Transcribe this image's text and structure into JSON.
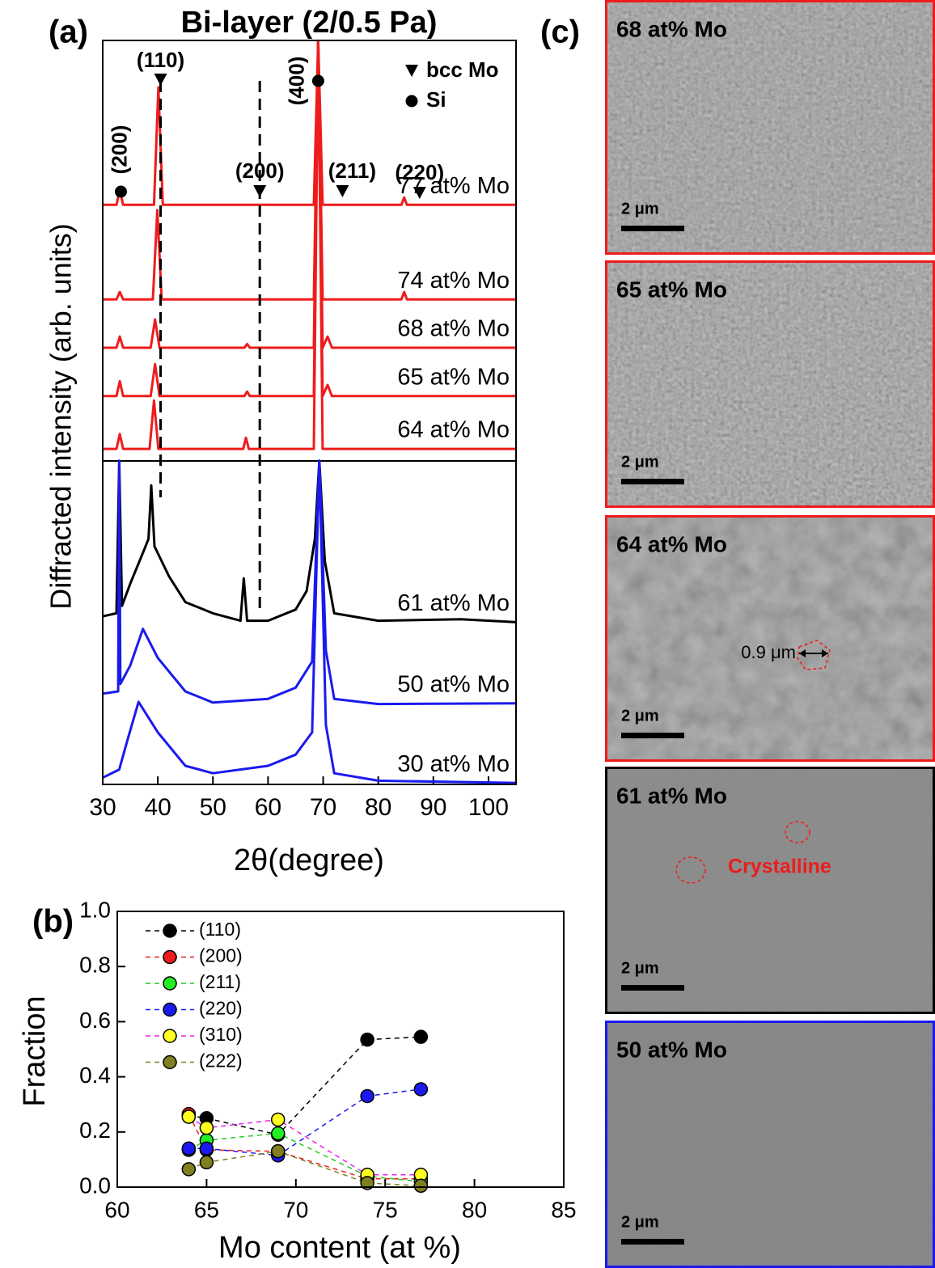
{
  "chart_data": [
    {
      "type": "line",
      "panel_label": "(a)",
      "title": "Bi-layer (2/0.5 Pa)",
      "x_label": "2θ(degree)",
      "y_label": "Diffracted intensity (arb. units)",
      "xlim": [
        30,
        105
      ],
      "xticks": [
        30,
        40,
        50,
        60,
        70,
        80,
        90,
        100
      ],
      "ylim": [
        0,
        100
      ],
      "legend": "inline",
      "series": [
        {
          "name": "77 at% Mo",
          "color": "#ee1c1c",
          "x": [
            30,
            32.5,
            33.1,
            33.7,
            39.3,
            40.1,
            40.9,
            68.3,
            69.1,
            69.9,
            84.2,
            84.7,
            85.2,
            105
          ],
          "values": [
            77.9,
            77.9,
            79.9,
            77.9,
            77.9,
            93.7,
            77.9,
            77.9,
            100,
            77.9,
            77.9,
            78.9,
            77.9,
            77.9
          ]
        },
        {
          "name": "74 at% Mo",
          "color": "#ee1c1c",
          "x": [
            30,
            32.5,
            33.1,
            33.7,
            39.1,
            39.9,
            40.7,
            68.3,
            69.1,
            69.9,
            84.2,
            84.7,
            85.2,
            105
          ],
          "values": [
            65.2,
            65.2,
            66.2,
            65.2,
            65.2,
            77.2,
            65.2,
            65.2,
            100,
            65.2,
            65.2,
            66.2,
            65.2,
            65.2
          ]
        },
        {
          "name": "68 at% Mo",
          "color": "#ee1c1c",
          "x": [
            30,
            32.5,
            33.1,
            33.7,
            38.7,
            39.5,
            40.3,
            55.7,
            56.2,
            56.7,
            68.3,
            69.1,
            69.9,
            70.8,
            71.6,
            105
          ],
          "values": [
            58.7,
            58.7,
            60.2,
            58.7,
            58.7,
            62.5,
            58.7,
            58.7,
            59.2,
            58.7,
            58.7,
            100,
            58.7,
            60.2,
            58.7,
            58.7
          ]
        },
        {
          "name": "65 at% Mo",
          "color": "#ee1c1c",
          "x": [
            30,
            32.5,
            33.1,
            33.7,
            38.7,
            39.5,
            40.3,
            55.7,
            56.2,
            56.7,
            68.3,
            69.1,
            69.9,
            70.8,
            71.6,
            105
          ],
          "values": [
            52.2,
            52.2,
            54.2,
            52.2,
            52.2,
            56.5,
            52.2,
            52.2,
            52.8,
            52.2,
            52.2,
            100,
            52.2,
            53.7,
            52.2,
            52.2
          ]
        },
        {
          "name": "64 at% Mo",
          "color": "#ee1c1c",
          "x": [
            30,
            32.5,
            33.1,
            33.7,
            38.5,
            39.3,
            40.1,
            55.5,
            56.0,
            56.5,
            68.3,
            69.1,
            69.9,
            105
          ],
          "values": [
            45.1,
            45.1,
            47.1,
            45.1,
            45.1,
            51.6,
            45.1,
            45.1,
            46.6,
            45.1,
            45.1,
            100,
            45.1,
            45.1
          ]
        },
        {
          "name": "61 at% Mo",
          "color": "#000000",
          "x": [
            30,
            32.5,
            33,
            33.5,
            35,
            37.5,
            38.3,
            38.8,
            39.4,
            42,
            45,
            50,
            55,
            55.6,
            56.2,
            60,
            65,
            67,
            68.5,
            69.3,
            70.3,
            72,
            80,
            95,
            105
          ],
          "values": [
            22.6,
            23,
            43.5,
            24,
            27,
            31.5,
            33,
            40.2,
            32,
            28,
            24.5,
            23,
            22,
            27.7,
            22,
            22,
            23.5,
            26,
            33,
            43.5,
            30,
            23,
            22,
            22.2,
            21.8
          ]
        },
        {
          "name": "50 at% Mo",
          "color": "#1a1aee",
          "x": [
            30,
            32.8,
            33,
            33.2,
            35,
            37.3,
            40,
            45,
            50,
            60,
            65,
            68,
            69.3,
            70.5,
            72,
            80,
            105
          ],
          "values": [
            12.2,
            12.5,
            43.5,
            13.5,
            16,
            20.9,
            17,
            12.5,
            11,
            11.5,
            13,
            16.5,
            43.5,
            18,
            11.5,
            10.8,
            10.9
          ]
        },
        {
          "name": "30 at% Mo",
          "color": "#1a1aee",
          "x": [
            30,
            33,
            34.5,
            36.5,
            40,
            45,
            50,
            60,
            65,
            68,
            69.3,
            70.5,
            72,
            80,
            105
          ],
          "values": [
            0.9,
            2,
            6,
            11.1,
            7,
            2.5,
            1.5,
            2.5,
            4,
            7,
            43.5,
            8,
            1.5,
            0.5,
            0.2
          ]
        }
      ],
      "peak_labels": [
        {
          "label": "(110)",
          "x": 40.5,
          "symbol": "triangle"
        },
        {
          "label": "(200)",
          "x": 58.5,
          "symbol": "triangle"
        },
        {
          "label": "(211)",
          "x": 73.5,
          "symbol": "triangle"
        },
        {
          "label": "(220)",
          "x": 87.5,
          "symbol": "triangle"
        },
        {
          "label": "(200)",
          "x": 33.3,
          "symbol": "circle"
        },
        {
          "label": "(400)",
          "x": 69.1,
          "symbol": "circle"
        }
      ],
      "reference_lines": [
        40.5,
        58.5
      ],
      "phase_legend": [
        {
          "label": "bcc Mo",
          "symbol": "triangle"
        },
        {
          "label": "Si",
          "symbol": "circle"
        }
      ]
    },
    {
      "type": "line",
      "panel_label": "(b)",
      "x_label": "Mo content (at %)",
      "y_label": "Fraction",
      "markers": true,
      "legend": "upper left",
      "xlim": [
        60,
        85
      ],
      "xticks": [
        60,
        65,
        70,
        75,
        80,
        85
      ],
      "ylim": [
        0,
        1
      ],
      "yticks": [
        {
          "value": 0,
          "label": "0.0"
        },
        {
          "value": 0.2,
          "label": "0.2"
        },
        {
          "value": 0.4,
          "label": "0.4"
        },
        {
          "value": 0.6,
          "label": "0.6"
        },
        {
          "value": 0.8,
          "label": "0.8"
        },
        {
          "value": 1,
          "label": "1.0"
        }
      ],
      "x": [
        64,
        65,
        69,
        74,
        77
      ],
      "series": [
        {
          "name": "(110)",
          "color": "#000000",
          "line_color": "#000000",
          "values": [
            0.26,
            0.25,
            0.19,
            0.535,
            0.545
          ]
        },
        {
          "name": "(200)",
          "color": "#ee1c1c",
          "line_color": "#ee1c1c",
          "values": [
            0.265,
            0.135,
            0.13,
            0.03,
            0.03
          ]
        },
        {
          "name": "(211)",
          "color": "#22ee22",
          "line_color": "#22cc22",
          "values": [
            0.135,
            0.17,
            0.195,
            0.04,
            0.02
          ]
        },
        {
          "name": "(220)",
          "color": "#1a1aee",
          "line_color": "#1a1aee",
          "values": [
            0.14,
            0.14,
            0.115,
            0.33,
            0.355
          ]
        },
        {
          "name": "(310)",
          "color": "#ffff22",
          "line_color": "#ee22ee",
          "values": [
            0.255,
            0.215,
            0.245,
            0.045,
            0.045
          ]
        },
        {
          "name": "(222)",
          "color": "#808020",
          "line_color": "#808020",
          "values": [
            0.065,
            0.09,
            0.13,
            0.015,
            0.005
          ]
        }
      ]
    }
  ],
  "sem_panel": {
    "panel_label": "(c)",
    "images": [
      {
        "label": "68 at% Mo",
        "scale_bar": "2 μm",
        "border_color": "#ee1c1c"
      },
      {
        "label": "65 at% Mo",
        "scale_bar": "2 μm",
        "border_color": "#ee1c1c"
      },
      {
        "label": "64 at% Mo",
        "scale_bar": "2 μm",
        "border_color": "#ee1c1c",
        "annotation": "0.9 μm"
      },
      {
        "label": "61 at% Mo",
        "scale_bar": "2 μm",
        "border_color": "#000000",
        "annotation": "Crystalline"
      },
      {
        "label": "50 at% Mo",
        "scale_bar": "2 μm",
        "border_color": "#1a1aee"
      }
    ]
  }
}
